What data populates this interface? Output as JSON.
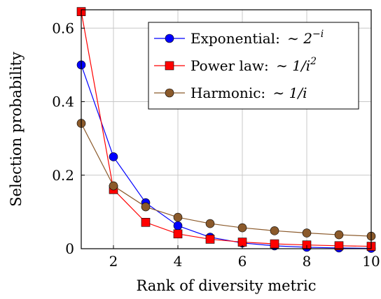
{
  "chart_data": {
    "type": "line",
    "title": "",
    "xlabel": "Rank of diversity metric",
    "ylabel": "Selection probability",
    "xlim": [
      1,
      10
    ],
    "ylim": [
      0,
      0.65
    ],
    "x_ticks": [
      2,
      4,
      6,
      8,
      10
    ],
    "y_ticks": [
      0,
      0.2,
      0.4,
      0.6
    ],
    "x_tick_labels": [
      "2",
      "4",
      "6",
      "8",
      "10"
    ],
    "y_tick_labels": [
      "0",
      "0.2",
      "0.4",
      "0.6"
    ],
    "grid": true,
    "legend_position": "top-right",
    "x": [
      1,
      2,
      3,
      4,
      5,
      6,
      7,
      8,
      9,
      10
    ],
    "series": [
      {
        "name": "Exponential: ~ 2^{-i}",
        "legend_prefix": "Exponential: ",
        "legend_formula": "2",
        "legend_sup": "−i",
        "color": "#0000ff",
        "marker": "circle",
        "values": [
          0.5,
          0.25,
          0.125,
          0.0625,
          0.0313,
          0.0156,
          0.0078,
          0.0039,
          0.002,
          0.001
        ]
      },
      {
        "name": "Power law: ~ 1/i^2",
        "legend_prefix": "Power law: ",
        "legend_formula": "1/i",
        "legend_sup": "2",
        "color": "#ff0000",
        "marker": "square",
        "values": [
          0.645,
          0.161,
          0.0717,
          0.0403,
          0.0258,
          0.0179,
          0.0132,
          0.0101,
          0.008,
          0.0065
        ]
      },
      {
        "name": "Harmonic: ~ 1/i",
        "legend_prefix": "Harmonic: ",
        "legend_formula": "1/i",
        "legend_sup": "",
        "color": "#8b5a2b",
        "marker": "circle",
        "values": [
          0.341,
          0.171,
          0.114,
          0.0854,
          0.0683,
          0.0569,
          0.0488,
          0.0427,
          0.0379,
          0.0341
        ]
      }
    ]
  }
}
